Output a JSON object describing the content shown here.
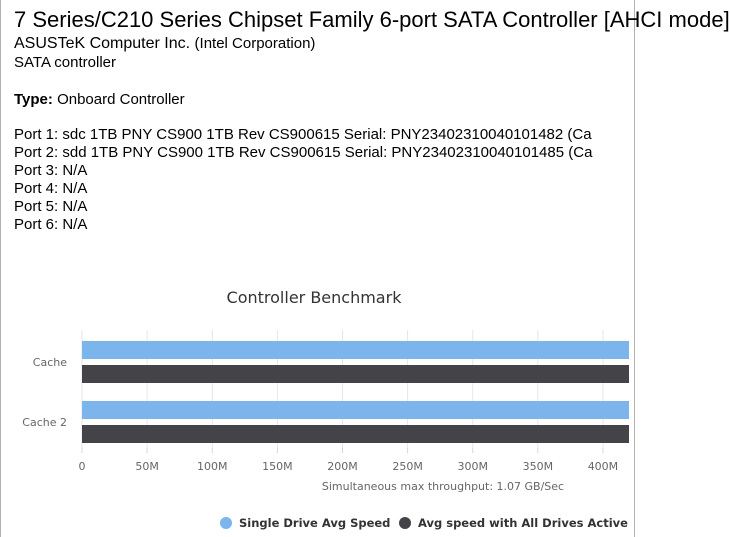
{
  "device": {
    "title": "7 Series/C210 Series Chipset Family 6-port SATA Controller [AHCI mode]",
    "vendor": "ASUSTeK Computer Inc.",
    "vendor_sub": "(Intel Corporation)",
    "category": "SATA controller",
    "type_label": "Type:",
    "type_value": "Onboard Controller"
  },
  "ports": [
    "Port 1: sdc 1TB PNY CS900 1TB Rev CS900615 Serial: PNY23402310040101482 (Ca",
    "Port 2: sdd 1TB PNY CS900 1TB Rev CS900615 Serial: PNY23402310040101485 (Ca",
    "Port 3: N/A",
    "Port 4: N/A",
    "Port 5: N/A",
    "Port 6: N/A"
  ],
  "chart_data": {
    "type": "bar",
    "title": "Controller Benchmark",
    "orientation": "horizontal",
    "categories": [
      "Cache",
      "Cache 2"
    ],
    "series": [
      {
        "name": "Single Drive Avg Speed",
        "color": "#7cb5ec",
        "values": [
          420,
          420
        ]
      },
      {
        "name": "Avg speed with All Drives Active",
        "color": "#434348",
        "values": [
          420,
          420
        ]
      }
    ],
    "x_ticks": [
      "0",
      "50M",
      "100M",
      "150M",
      "200M",
      "250M",
      "300M",
      "350M",
      "400M"
    ],
    "xlim": [
      0,
      420
    ],
    "xlabel": "Simultaneous max throughput: 1.07 GB/Sec",
    "legend_position": "bottom",
    "grid": true
  }
}
